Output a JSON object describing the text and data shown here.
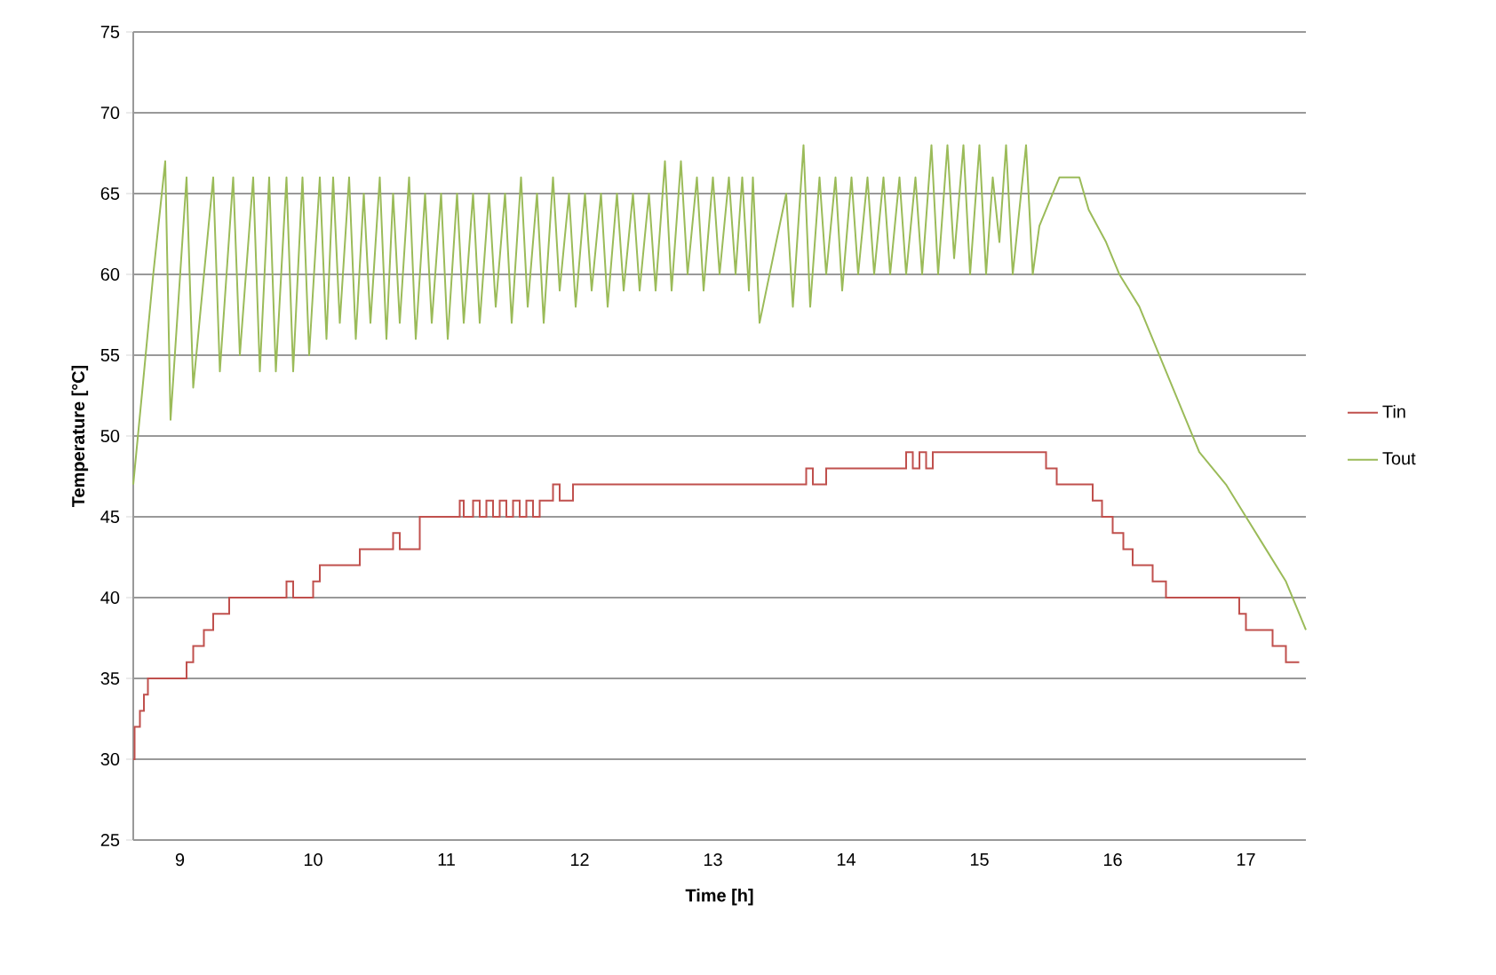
{
  "chart_data": {
    "type": "line",
    "xlabel": "Time [h]",
    "ylabel": "Temperature [°C]",
    "xlim": [
      8.65,
      17.45
    ],
    "ylim": [
      25,
      75
    ],
    "xticks": [
      9,
      10,
      11,
      12,
      13,
      14,
      15,
      16,
      17
    ],
    "yticks": [
      25,
      30,
      35,
      40,
      45,
      50,
      55,
      60,
      65,
      70,
      75
    ],
    "grid": "y",
    "legend": "right",
    "marker": "none",
    "line_style": "solid",
    "series": [
      {
        "name": "Tin",
        "color": "#c0504d",
        "type": "step",
        "x": [
          8.65,
          8.66,
          8.7,
          8.73,
          8.76,
          9.05,
          9.1,
          9.18,
          9.25,
          9.37,
          9.8,
          9.85,
          10.0,
          10.05,
          10.1,
          10.35,
          10.6,
          10.65,
          10.8,
          11.1,
          11.13,
          11.2,
          11.25,
          11.3,
          11.35,
          11.4,
          11.45,
          11.5,
          11.55,
          11.6,
          11.65,
          11.7,
          11.8,
          11.85,
          11.95,
          13.7,
          13.75,
          13.85,
          14.45,
          14.5,
          14.55,
          14.6,
          14.65,
          14.7,
          15.5,
          15.58,
          15.65,
          15.85,
          15.92,
          16.0,
          16.08,
          16.15,
          16.3,
          16.4,
          16.55,
          16.95,
          17.0,
          17.2,
          17.3,
          17.4
        ],
        "values": [
          30,
          32,
          33,
          34,
          35,
          36,
          37,
          38,
          39,
          40,
          41,
          40,
          41,
          42,
          42,
          43,
          44,
          43,
          45,
          46,
          45,
          46,
          45,
          46,
          45,
          46,
          45,
          46,
          45,
          46,
          45,
          46,
          47,
          46,
          47,
          48,
          47,
          48,
          49,
          48,
          49,
          48,
          49,
          49,
          48,
          47,
          47,
          46,
          45,
          44,
          43,
          42,
          41,
          40,
          40,
          39,
          38,
          37,
          36,
          36
        ]
      },
      {
        "name": "Tout",
        "color": "#9bbb59",
        "x": [
          8.65,
          8.72,
          8.8,
          8.89,
          8.93,
          9.05,
          9.1,
          9.25,
          9.3,
          9.4,
          9.45,
          9.55,
          9.6,
          9.67,
          9.72,
          9.8,
          9.85,
          9.92,
          9.97,
          10.05,
          10.1,
          10.15,
          10.2,
          10.27,
          10.32,
          10.38,
          10.43,
          10.5,
          10.55,
          10.6,
          10.65,
          10.72,
          10.77,
          10.84,
          10.89,
          10.96,
          11.01,
          11.08,
          11.13,
          11.2,
          11.25,
          11.32,
          11.37,
          11.44,
          11.49,
          11.56,
          11.61,
          11.68,
          11.73,
          11.8,
          11.85,
          11.92,
          11.97,
          12.04,
          12.09,
          12.16,
          12.21,
          12.28,
          12.33,
          12.4,
          12.45,
          12.52,
          12.57,
          12.64,
          12.69,
          12.76,
          12.81,
          12.88,
          12.93,
          13.0,
          13.05,
          13.12,
          13.17,
          13.22,
          13.27,
          13.3,
          13.35,
          13.55,
          13.6,
          13.68,
          13.73,
          13.8,
          13.85,
          13.92,
          13.97,
          14.04,
          14.09,
          14.16,
          14.21,
          14.28,
          14.33,
          14.4,
          14.45,
          14.52,
          14.57,
          14.64,
          14.69,
          14.76,
          14.81,
          14.88,
          14.93,
          15.0,
          15.05,
          15.1,
          15.15,
          15.2,
          15.25,
          15.35,
          15.4,
          15.45,
          15.55,
          15.6,
          15.75,
          15.82,
          15.95,
          16.05,
          16.2,
          16.35,
          16.5,
          16.65,
          16.85,
          17.0,
          17.15,
          17.3,
          17.4,
          17.45
        ],
        "values": [
          47,
          53,
          60,
          67,
          51,
          66,
          53,
          66,
          54,
          66,
          55,
          66,
          54,
          66,
          54,
          66,
          54,
          66,
          55,
          66,
          56,
          66,
          57,
          66,
          56,
          65,
          57,
          66,
          56,
          65,
          57,
          66,
          56,
          65,
          57,
          65,
          56,
          65,
          57,
          65,
          57,
          65,
          58,
          65,
          57,
          66,
          58,
          65,
          57,
          66,
          59,
          65,
          58,
          65,
          59,
          65,
          58,
          65,
          59,
          65,
          59,
          65,
          59,
          67,
          59,
          67,
          60,
          66,
          59,
          66,
          60,
          66,
          60,
          66,
          59,
          66,
          57,
          65,
          58,
          68,
          58,
          66,
          60,
          66,
          59,
          66,
          60,
          66,
          60,
          66,
          60,
          66,
          60,
          66,
          60,
          68,
          60,
          68,
          61,
          68,
          60,
          68,
          60,
          66,
          62,
          68,
          60,
          68,
          60,
          63,
          65,
          66,
          66,
          64,
          62,
          60,
          58,
          55,
          52,
          49,
          47,
          45,
          43,
          41,
          39,
          38
        ]
      }
    ]
  }
}
